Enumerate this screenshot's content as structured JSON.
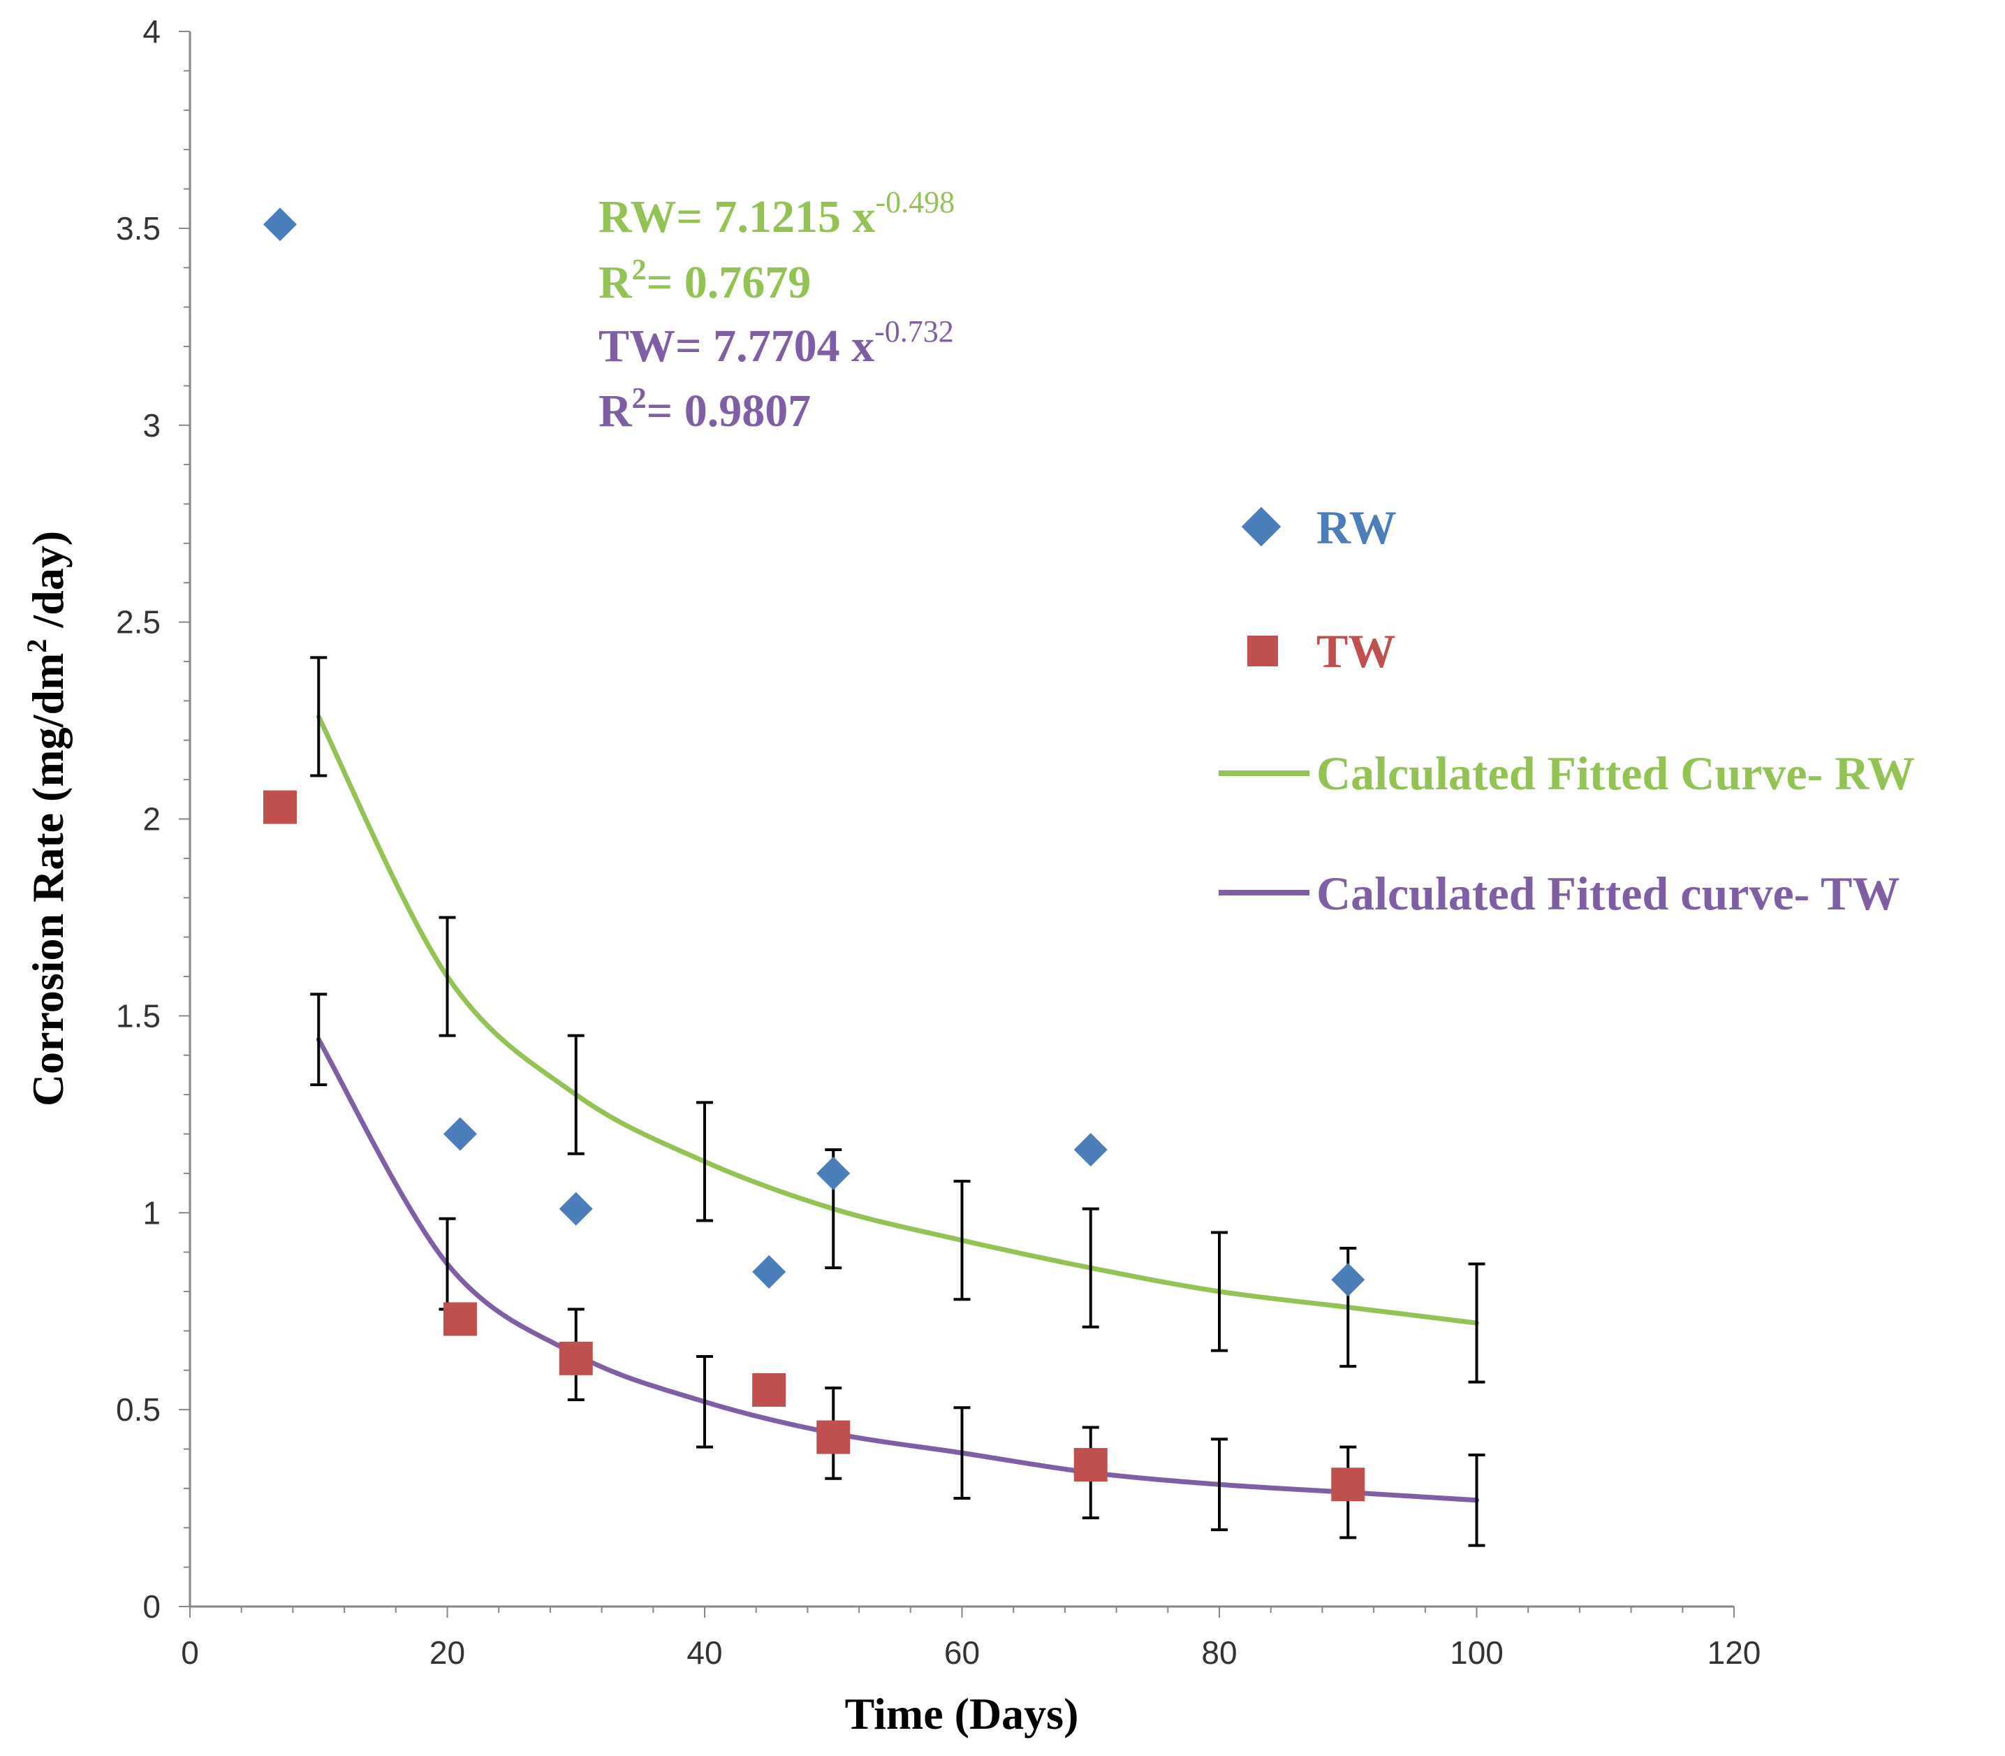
{
  "chart_data": {
    "type": "scatter",
    "title": "",
    "xlabel": "Time (Days)",
    "ylabel_main": "Corrosion Rate (mg/dm",
    "ylabel_sup": "2",
    "ylabel_tail": " /day)",
    "xlim": [
      0,
      120
    ],
    "ylim": [
      0,
      4
    ],
    "x_ticks": [
      0,
      20,
      40,
      60,
      80,
      100,
      120
    ],
    "x_tick_labels": [
      "0",
      "20",
      "40",
      "60",
      "80",
      "100",
      "120"
    ],
    "y_ticks": [
      0,
      0.5,
      1,
      1.5,
      2,
      2.5,
      3,
      3.5,
      4
    ],
    "y_tick_labels": [
      "0",
      "0.5",
      "1",
      "1.5",
      "2",
      "2.5",
      "3",
      "3.5",
      "4"
    ],
    "x_minor_step": 4,
    "y_minor_step": 0.1,
    "grid": false,
    "legend_position": "right",
    "series": [
      {
        "name": "RW",
        "kind": "scatter",
        "marker": "diamond",
        "color": "#4a7ebb",
        "x": [
          7,
          21,
          30,
          45,
          50,
          70,
          90
        ],
        "y": [
          3.51,
          1.2,
          1.01,
          0.85,
          1.1,
          1.16,
          0.83
        ]
      },
      {
        "name": "TW",
        "kind": "scatter",
        "marker": "square",
        "color": "#c0504d",
        "x": [
          7,
          21,
          30,
          45,
          50,
          70,
          90
        ],
        "y": [
          2.03,
          0.73,
          0.63,
          0.55,
          0.43,
          0.36,
          0.31
        ]
      },
      {
        "name": "Calculated Fitted Curve- RW",
        "kind": "line",
        "color": "#92c353",
        "x": [
          10,
          20,
          30,
          40,
          50,
          60,
          70,
          80,
          90,
          100
        ],
        "y": [
          2.26,
          1.6,
          1.3,
          1.13,
          1.01,
          0.93,
          0.86,
          0.8,
          0.76,
          0.72
        ],
        "error": [
          0.15,
          0.15,
          0.15,
          0.15,
          0.15,
          0.15,
          0.15,
          0.15,
          0.15,
          0.15
        ]
      },
      {
        "name": "Calculated Fitted curve- TW",
        "kind": "line",
        "color": "#7f5ea6",
        "x": [
          10,
          20,
          30,
          40,
          50,
          60,
          70,
          80,
          90,
          100
        ],
        "y": [
          1.44,
          0.87,
          0.64,
          0.52,
          0.44,
          0.39,
          0.34,
          0.31,
          0.29,
          0.27
        ],
        "error": [
          0.115,
          0.115,
          0.115,
          0.115,
          0.115,
          0.115,
          0.115,
          0.115,
          0.115,
          0.115
        ]
      }
    ],
    "equations": [
      {
        "lhs": "RW= 7.1215 x",
        "exp": "-0.498",
        "color": "#92c353"
      },
      {
        "lhs": "R",
        "sup": "2",
        "rhs": "= 0.7679",
        "color": "#92c353"
      },
      {
        "lhs": "TW= 7.7704 x",
        "exp": "-0.732",
        "color": "#7f5ea6"
      },
      {
        "lhs": "R",
        "sup": "2",
        "rhs": "= 0.9807",
        "color": "#7f5ea6"
      }
    ],
    "legend": [
      {
        "label": "RW",
        "marker": "diamond",
        "color": "#4a7ebb",
        "text_color": "#4a7ebb"
      },
      {
        "label": "TW",
        "marker": "square",
        "color": "#c0504d",
        "text_color": "#c0504d"
      },
      {
        "label": "Calculated Fitted Curve- RW",
        "marker": "line",
        "color": "#92c353",
        "text_color": "#92c353"
      },
      {
        "label": "Calculated Fitted curve- TW",
        "marker": "line",
        "color": "#7f5ea6",
        "text_color": "#7f5ea6"
      }
    ]
  }
}
